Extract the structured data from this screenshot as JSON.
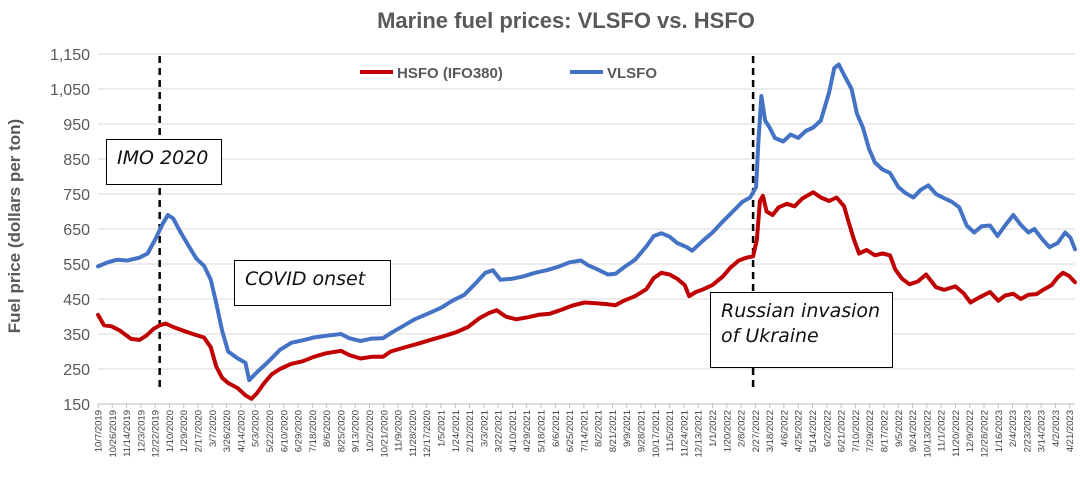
{
  "chart_data": {
    "type": "line",
    "title": "Marine fuel prices: VLSFO vs. HSFO",
    "ylabel": "Fuel price  (dollars per ton)",
    "xlabel": "",
    "ylim": [
      150,
      1150
    ],
    "yticks": [
      150,
      250,
      350,
      450,
      550,
      650,
      750,
      850,
      950,
      1050,
      1150
    ],
    "ytick_labels": [
      "150",
      "250",
      "350",
      "450",
      "550",
      "650",
      "750",
      "850",
      "950",
      "1,050",
      "1,150"
    ],
    "grid": true,
    "legend_position": "top-center",
    "x_start": "10/7/2019",
    "x_end": "4/28/2023",
    "xtick_labels": [
      "10/7/2019",
      "10/26/2019",
      "11/14/2019",
      "12/3/2019",
      "12/22/2019",
      "1/10/2020",
      "1/29/2020",
      "2/17/2020",
      "3/7/2020",
      "3/26/2020",
      "4/14/2020",
      "5/3/2020",
      "5/22/2020",
      "6/10/2020",
      "6/29/2020",
      "7/18/2020",
      "8/6/2020",
      "8/25/2020",
      "9/13/2020",
      "10/2/2020",
      "10/21/2020",
      "11/9/2020",
      "11/28/2020",
      "12/17/2020",
      "1/5/2021",
      "1/24/2021",
      "2/12/2021",
      "3/3/2021",
      "3/22/2021",
      "4/10/2021",
      "4/29/2021",
      "5/18/2021",
      "6/6/2021",
      "6/25/2021",
      "7/14/2021",
      "8/2/2021",
      "8/21/2021",
      "9/9/2021",
      "9/28/2021",
      "10/17/2021",
      "11/5/2021",
      "11/24/2021",
      "12/13/2021",
      "1/1/2022",
      "1/20/2022",
      "2/8/2022",
      "2/27/2022",
      "3/18/2022",
      "4/6/2022",
      "4/25/2022",
      "5/14/2022",
      "6/2/2022",
      "6/21/2022",
      "7/10/2022",
      "7/29/2022",
      "8/17/2022",
      "9/5/2022",
      "9/24/2022",
      "10/13/2022",
      "11/1/2022",
      "11/20/2022",
      "12/9/2022",
      "12/28/2022",
      "1/16/2023",
      "2/4/2023",
      "2/23/2023",
      "3/14/2023",
      "4/2/2023",
      "4/21/2023"
    ],
    "series": [
      {
        "name": "HSFO (IFO380)",
        "color": "#c00000",
        "points": [
          [
            "2019-10-07",
            405
          ],
          [
            "2019-10-15",
            375
          ],
          [
            "2019-10-25",
            372
          ],
          [
            "2019-11-05",
            360
          ],
          [
            "2019-11-20",
            336
          ],
          [
            "2019-12-01",
            333
          ],
          [
            "2019-12-10",
            345
          ],
          [
            "2019-12-20",
            365
          ],
          [
            "2019-12-28",
            375
          ],
          [
            "2020-01-05",
            380
          ],
          [
            "2020-01-15",
            370
          ],
          [
            "2020-01-25",
            362
          ],
          [
            "2020-02-10",
            350
          ],
          [
            "2020-02-25",
            340
          ],
          [
            "2020-03-05",
            312
          ],
          [
            "2020-03-12",
            258
          ],
          [
            "2020-03-20",
            225
          ],
          [
            "2020-03-28",
            210
          ],
          [
            "2020-04-10",
            195
          ],
          [
            "2020-04-20",
            175
          ],
          [
            "2020-04-28",
            165
          ],
          [
            "2020-05-05",
            180
          ],
          [
            "2020-05-15",
            210
          ],
          [
            "2020-05-25",
            235
          ],
          [
            "2020-06-05",
            250
          ],
          [
            "2020-06-20",
            265
          ],
          [
            "2020-07-05",
            272
          ],
          [
            "2020-07-20",
            285
          ],
          [
            "2020-08-05",
            295
          ],
          [
            "2020-08-25",
            302
          ],
          [
            "2020-09-05",
            290
          ],
          [
            "2020-09-20",
            280
          ],
          [
            "2020-10-05",
            285
          ],
          [
            "2020-10-20",
            285
          ],
          [
            "2020-10-30",
            300
          ],
          [
            "2020-11-15",
            310
          ],
          [
            "2020-12-05",
            322
          ],
          [
            "2020-12-25",
            335
          ],
          [
            "2021-01-10",
            345
          ],
          [
            "2021-01-25",
            355
          ],
          [
            "2021-02-10",
            370
          ],
          [
            "2021-02-25",
            395
          ],
          [
            "2021-03-10",
            410
          ],
          [
            "2021-03-20",
            418
          ],
          [
            "2021-04-01",
            400
          ],
          [
            "2021-04-15",
            392
          ],
          [
            "2021-05-01",
            398
          ],
          [
            "2021-05-15",
            405
          ],
          [
            "2021-05-30",
            408
          ],
          [
            "2021-06-15",
            420
          ],
          [
            "2021-06-30",
            432
          ],
          [
            "2021-07-15",
            440
          ],
          [
            "2021-07-30",
            438
          ],
          [
            "2021-08-15",
            435
          ],
          [
            "2021-08-25",
            432
          ],
          [
            "2021-09-05",
            445
          ],
          [
            "2021-09-20",
            458
          ],
          [
            "2021-10-05",
            478
          ],
          [
            "2021-10-15",
            510
          ],
          [
            "2021-10-25",
            525
          ],
          [
            "2021-11-05",
            520
          ],
          [
            "2021-11-15",
            508
          ],
          [
            "2021-11-25",
            490
          ],
          [
            "2021-12-01",
            458
          ],
          [
            "2021-12-10",
            470
          ],
          [
            "2021-12-20",
            478
          ],
          [
            "2022-01-01",
            490
          ],
          [
            "2022-01-15",
            515
          ],
          [
            "2022-01-25",
            540
          ],
          [
            "2022-02-05",
            560
          ],
          [
            "2022-02-15",
            568
          ],
          [
            "2022-02-24",
            572
          ],
          [
            "2022-03-01",
            620
          ],
          [
            "2022-03-05",
            730
          ],
          [
            "2022-03-09",
            745
          ],
          [
            "2022-03-14",
            700
          ],
          [
            "2022-03-22",
            690
          ],
          [
            "2022-03-30",
            712
          ],
          [
            "2022-04-10",
            722
          ],
          [
            "2022-04-20",
            715
          ],
          [
            "2022-05-01",
            738
          ],
          [
            "2022-05-15",
            755
          ],
          [
            "2022-05-25",
            740
          ],
          [
            "2022-06-05",
            730
          ],
          [
            "2022-06-15",
            740
          ],
          [
            "2022-06-25",
            715
          ],
          [
            "2022-07-01",
            670
          ],
          [
            "2022-07-08",
            620
          ],
          [
            "2022-07-15",
            580
          ],
          [
            "2022-07-25",
            590
          ],
          [
            "2022-08-05",
            575
          ],
          [
            "2022-08-15",
            580
          ],
          [
            "2022-08-25",
            575
          ],
          [
            "2022-09-01",
            535
          ],
          [
            "2022-09-10",
            508
          ],
          [
            "2022-09-20",
            492
          ],
          [
            "2022-10-01",
            500
          ],
          [
            "2022-10-12",
            520
          ],
          [
            "2022-10-25",
            484
          ],
          [
            "2022-11-05",
            476
          ],
          [
            "2022-11-20",
            486
          ],
          [
            "2022-12-01",
            466
          ],
          [
            "2022-12-10",
            440
          ],
          [
            "2022-12-22",
            455
          ],
          [
            "2023-01-05",
            470
          ],
          [
            "2023-01-16",
            445
          ],
          [
            "2023-01-25",
            460
          ],
          [
            "2023-02-05",
            465
          ],
          [
            "2023-02-15",
            450
          ],
          [
            "2023-02-25",
            462
          ],
          [
            "2023-03-08",
            464
          ],
          [
            "2023-03-18",
            478
          ],
          [
            "2023-03-28",
            490
          ],
          [
            "2023-04-05",
            512
          ],
          [
            "2023-04-12",
            525
          ],
          [
            "2023-04-20",
            516
          ],
          [
            "2023-04-28",
            498
          ]
        ]
      },
      {
        "name": "VLSFO",
        "color": "#4472c4",
        "points": [
          [
            "2019-10-07",
            543
          ],
          [
            "2019-10-20",
            555
          ],
          [
            "2019-11-01",
            562
          ],
          [
            "2019-11-15",
            560
          ],
          [
            "2019-12-01",
            568
          ],
          [
            "2019-12-12",
            580
          ],
          [
            "2019-12-22",
            620
          ],
          [
            "2020-01-01",
            665
          ],
          [
            "2020-01-08",
            690
          ],
          [
            "2020-01-15",
            680
          ],
          [
            "2020-01-25",
            640
          ],
          [
            "2020-02-05",
            600
          ],
          [
            "2020-02-15",
            565
          ],
          [
            "2020-02-25",
            545
          ],
          [
            "2020-03-05",
            505
          ],
          [
            "2020-03-12",
            440
          ],
          [
            "2020-03-20",
            360
          ],
          [
            "2020-03-28",
            300
          ],
          [
            "2020-04-10",
            280
          ],
          [
            "2020-04-20",
            268
          ],
          [
            "2020-04-25",
            218
          ],
          [
            "2020-05-05",
            240
          ],
          [
            "2020-05-20",
            270
          ],
          [
            "2020-06-05",
            305
          ],
          [
            "2020-06-20",
            325
          ],
          [
            "2020-07-05",
            332
          ],
          [
            "2020-07-20",
            340
          ],
          [
            "2020-08-05",
            345
          ],
          [
            "2020-08-25",
            350
          ],
          [
            "2020-09-05",
            338
          ],
          [
            "2020-09-20",
            330
          ],
          [
            "2020-10-05",
            337
          ],
          [
            "2020-10-20",
            338
          ],
          [
            "2020-11-01",
            355
          ],
          [
            "2020-11-15",
            372
          ],
          [
            "2020-12-01",
            392
          ],
          [
            "2020-12-15",
            405
          ],
          [
            "2021-01-05",
            425
          ],
          [
            "2021-01-20",
            445
          ],
          [
            "2021-02-05",
            462
          ],
          [
            "2021-02-20",
            495
          ],
          [
            "2021-03-05",
            525
          ],
          [
            "2021-03-15",
            532
          ],
          [
            "2021-03-25",
            505
          ],
          [
            "2021-04-10",
            508
          ],
          [
            "2021-04-25",
            515
          ],
          [
            "2021-05-10",
            525
          ],
          [
            "2021-05-25",
            532
          ],
          [
            "2021-06-10",
            542
          ],
          [
            "2021-06-25",
            555
          ],
          [
            "2021-07-10",
            560
          ],
          [
            "2021-07-20",
            546
          ],
          [
            "2021-08-01",
            535
          ],
          [
            "2021-08-15",
            520
          ],
          [
            "2021-08-25",
            522
          ],
          [
            "2021-09-05",
            540
          ],
          [
            "2021-09-20",
            562
          ],
          [
            "2021-10-05",
            600
          ],
          [
            "2021-10-15",
            630
          ],
          [
            "2021-10-25",
            638
          ],
          [
            "2021-11-05",
            628
          ],
          [
            "2021-11-15",
            610
          ],
          [
            "2021-11-28",
            598
          ],
          [
            "2021-12-05",
            588
          ],
          [
            "2021-12-20",
            618
          ],
          [
            "2022-01-01",
            640
          ],
          [
            "2022-01-15",
            672
          ],
          [
            "2022-01-28",
            700
          ],
          [
            "2022-02-10",
            728
          ],
          [
            "2022-02-20",
            740
          ],
          [
            "2022-02-28",
            770
          ],
          [
            "2022-03-03",
            900
          ],
          [
            "2022-03-07",
            1030
          ],
          [
            "2022-03-12",
            960
          ],
          [
            "2022-03-18",
            940
          ],
          [
            "2022-03-25",
            910
          ],
          [
            "2022-04-05",
            900
          ],
          [
            "2022-04-15",
            920
          ],
          [
            "2022-04-25",
            910
          ],
          [
            "2022-05-05",
            930
          ],
          [
            "2022-05-15",
            940
          ],
          [
            "2022-05-25",
            960
          ],
          [
            "2022-06-05",
            1040
          ],
          [
            "2022-06-12",
            1110
          ],
          [
            "2022-06-18",
            1120
          ],
          [
            "2022-06-25",
            1090
          ],
          [
            "2022-07-05",
            1050
          ],
          [
            "2022-07-12",
            980
          ],
          [
            "2022-07-20",
            940
          ],
          [
            "2022-07-28",
            880
          ],
          [
            "2022-08-05",
            840
          ],
          [
            "2022-08-15",
            820
          ],
          [
            "2022-08-25",
            810
          ],
          [
            "2022-09-05",
            770
          ],
          [
            "2022-09-15",
            752
          ],
          [
            "2022-09-25",
            740
          ],
          [
            "2022-10-05",
            762
          ],
          [
            "2022-10-15",
            775
          ],
          [
            "2022-10-25",
            750
          ],
          [
            "2022-11-05",
            738
          ],
          [
            "2022-11-15",
            728
          ],
          [
            "2022-11-25",
            712
          ],
          [
            "2022-12-05",
            660
          ],
          [
            "2022-12-15",
            640
          ],
          [
            "2022-12-25",
            658
          ],
          [
            "2023-01-05",
            660
          ],
          [
            "2023-01-15",
            630
          ],
          [
            "2023-01-25",
            660
          ],
          [
            "2023-02-05",
            690
          ],
          [
            "2023-02-15",
            662
          ],
          [
            "2023-02-25",
            640
          ],
          [
            "2023-03-05",
            650
          ],
          [
            "2023-03-15",
            622
          ],
          [
            "2023-03-25",
            598
          ],
          [
            "2023-04-05",
            610
          ],
          [
            "2023-04-15",
            640
          ],
          [
            "2023-04-22",
            625
          ],
          [
            "2023-04-28",
            592
          ]
        ]
      }
    ],
    "vlines": [
      {
        "x": "2019-12-28"
      },
      {
        "x": "2022-02-24"
      }
    ],
    "annotations": [
      {
        "text": "IMO 2020"
      },
      {
        "text": "COVID onset"
      },
      {
        "text": "Russian invasion of Ukraine"
      }
    ]
  }
}
